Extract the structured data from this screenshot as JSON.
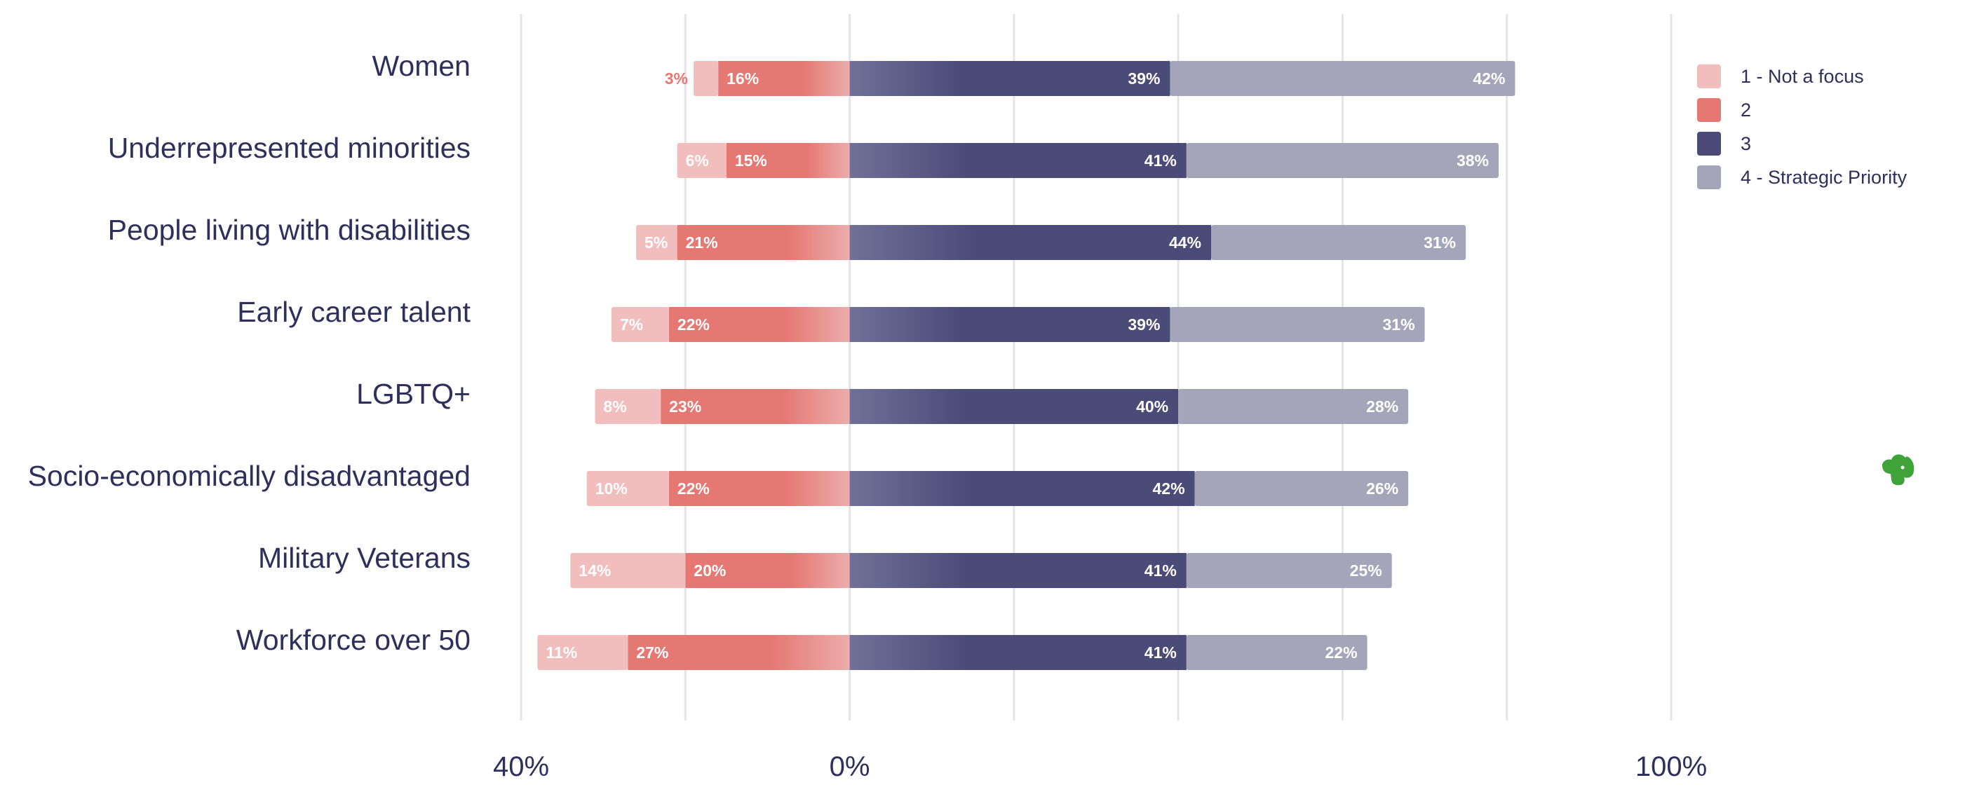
{
  "chart_data": {
    "type": "bar",
    "orientation": "horizontal",
    "stacking": "diverging",
    "categories": [
      "Women",
      "Underrepresented minorities",
      "People living with disabilities",
      "Early career talent",
      "LGBTQ+",
      "Socio-economically disadvantaged",
      "Military Veterans",
      "Workforce over 50"
    ],
    "series": [
      {
        "name": "1 - Not a focus",
        "side": "negative",
        "color": "#f1bdbd",
        "values": [
          3,
          6,
          5,
          7,
          8,
          10,
          14,
          11
        ]
      },
      {
        "name": "2",
        "side": "negative",
        "color": "#e57873",
        "values": [
          16,
          15,
          21,
          22,
          23,
          22,
          20,
          27
        ]
      },
      {
        "name": "3",
        "side": "positive",
        "color": "#4a4b77",
        "values": [
          39,
          41,
          44,
          39,
          40,
          42,
          41,
          41
        ]
      },
      {
        "name": "4 - Strategic Priority",
        "side": "positive",
        "color": "#a5a5ba",
        "values": [
          42,
          38,
          31,
          31,
          28,
          26,
          25,
          22
        ]
      }
    ],
    "value_suffix": "%",
    "x_range": [
      -40,
      100
    ],
    "x_gridlines": [
      -40,
      -20,
      0,
      20,
      40,
      60,
      80,
      100
    ],
    "x_tick_labels": [
      {
        "value": -40,
        "text": "40%"
      },
      {
        "value": 0,
        "text": "0%"
      },
      {
        "value": 100,
        "text": "100%"
      }
    ],
    "legend_position": "top-right",
    "title": "",
    "xlabel": "",
    "ylabel": ""
  },
  "icons": [
    "evernote-elephant-icon"
  ],
  "colors": {
    "text": "#2e2f5b",
    "grid": "#e4e4e8",
    "evernote": "#3fa33a"
  }
}
